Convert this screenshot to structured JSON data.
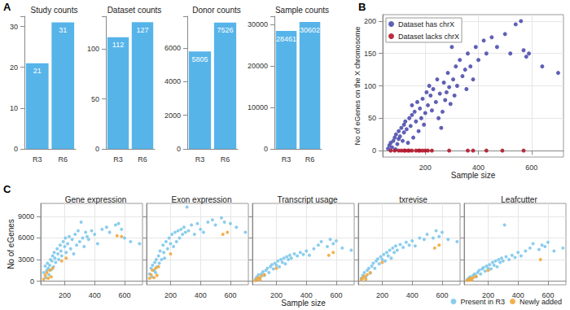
{
  "chart_data": [
    {
      "type": "bar",
      "annotation": "A",
      "title": "Study counts",
      "categories": [
        "R3",
        "R6"
      ],
      "values": [
        21,
        31
      ],
      "color": "#56B4E9",
      "ylim": [
        0,
        32.5
      ],
      "yticks": [
        0,
        10,
        20,
        30
      ],
      "grid": false,
      "data_labels": true
    },
    {
      "type": "bar",
      "title": "Dataset counts",
      "categories": [
        "R3",
        "R6"
      ],
      "values": [
        112,
        127
      ],
      "color": "#56B4E9",
      "ylim": [
        0,
        133
      ],
      "yticks": [
        0,
        50,
        100
      ],
      "grid": false,
      "data_labels": true
    },
    {
      "type": "bar",
      "title": "Donor counts",
      "categories": [
        "R3",
        "R6"
      ],
      "values": [
        5805,
        7526
      ],
      "color": "#56B4E9",
      "ylim": [
        0,
        7900
      ],
      "yticks": [
        0,
        2000,
        4000,
        6000
      ],
      "grid": false,
      "data_labels": true
    },
    {
      "type": "bar",
      "title": "Sample counts",
      "categories": [
        "R3",
        "R6"
      ],
      "values": [
        28461,
        30602
      ],
      "color": "#56B4E9",
      "ylim": [
        0,
        32000
      ],
      "yticks": [
        0,
        10000,
        20000,
        30000
      ],
      "grid": false,
      "data_labels": true
    },
    {
      "type": "scatter",
      "annotation": "B",
      "x_label": "Sample size",
      "y_label": "No of eGenes on the X chromosome",
      "xlim": [
        40,
        720
      ],
      "xticks": [
        200,
        400,
        600
      ],
      "ylim": [
        -10,
        210
      ],
      "yticks": [
        0,
        50,
        100,
        150,
        200
      ],
      "grid": true,
      "legend": "top-left",
      "series": [
        {
          "name": "Dataset has chrX",
          "color": "#4F4FAE",
          "x": [
            60,
            65,
            70,
            75,
            80,
            85,
            88,
            90,
            95,
            100,
            100,
            105,
            110,
            115,
            120,
            120,
            125,
            130,
            135,
            140,
            145,
            150,
            150,
            155,
            160,
            165,
            170,
            175,
            180,
            185,
            190,
            195,
            200,
            205,
            210,
            215,
            220,
            225,
            230,
            240,
            245,
            250,
            255,
            260,
            265,
            270,
            275,
            280,
            285,
            290,
            295,
            300,
            305,
            310,
            315,
            320,
            330,
            340,
            350,
            355,
            360,
            370,
            380,
            390,
            400,
            420,
            430,
            450,
            470,
            500,
            520,
            540,
            560,
            570,
            580,
            590,
            640,
            700
          ],
          "values": [
            3,
            8,
            12,
            5,
            15,
            20,
            2,
            25,
            10,
            30,
            18,
            22,
            35,
            15,
            40,
            28,
            45,
            33,
            12,
            50,
            38,
            55,
            70,
            20,
            60,
            45,
            75,
            30,
            65,
            50,
            80,
            40,
            58,
            90,
            70,
            100,
            85,
            62,
            95,
            75,
            110,
            50,
            88,
            35,
            60,
            105,
            78,
            90,
            120,
            98,
            72,
            160,
            110,
            85,
            130,
            100,
            140,
            115,
            125,
            95,
            150,
            130,
            110,
            160,
            140,
            170,
            150,
            175,
            160,
            180,
            150,
            195,
            200,
            155,
            145,
            150,
            130,
            120
          ]
        },
        {
          "name": "Dataset lacks chrX",
          "color": "#B2182B",
          "x": [
            70,
            85,
            100,
            110,
            120,
            125,
            135,
            140,
            150,
            165,
            175,
            180,
            190,
            200,
            210,
            225,
            290,
            360,
            380,
            430,
            490,
            570
          ],
          "values": [
            0,
            0,
            0,
            0,
            0,
            0,
            0,
            0,
            0,
            0,
            0,
            0,
            0,
            0,
            0,
            0,
            0,
            0,
            0,
            0,
            0,
            0
          ]
        }
      ]
    },
    {
      "type": "scatter",
      "annotation": "C",
      "title": "Gene expression",
      "y_label": "No of eGenes",
      "xlim": [
        40,
        720
      ],
      "xticks": [
        200,
        400,
        600
      ],
      "ylim": [
        -500,
        10800
      ],
      "yticks": [
        0,
        3000,
        6000,
        9000
      ],
      "grid": true,
      "series": [
        {
          "name": "Present in R3",
          "color": "#7EC8EC",
          "x": [
            60,
            70,
            75,
            80,
            85,
            90,
            95,
            100,
            105,
            110,
            115,
            120,
            125,
            130,
            135,
            140,
            150,
            155,
            160,
            170,
            175,
            180,
            190,
            200,
            205,
            210,
            220,
            230,
            240,
            250,
            260,
            270,
            280,
            290,
            300,
            310,
            320,
            330,
            340,
            350,
            360,
            380,
            400,
            420,
            450,
            480,
            500,
            540,
            560,
            580,
            600,
            640,
            700
          ],
          "values": [
            1200,
            2100,
            500,
            1500,
            2500,
            1800,
            900,
            2200,
            3000,
            1600,
            2800,
            3500,
            2000,
            4000,
            3200,
            2600,
            4500,
            3800,
            3000,
            5000,
            4200,
            3500,
            5500,
            4800,
            6000,
            4000,
            5200,
            6200,
            4500,
            5800,
            3800,
            6500,
            5000,
            7000,
            5500,
            8200,
            6000,
            4800,
            6800,
            6200,
            5800,
            7000,
            6500,
            5200,
            7200,
            7500,
            6800,
            7800,
            8000,
            7200,
            6000,
            5500,
            5200
          ]
        },
        {
          "name": "Newly added",
          "color": "#F2A93B",
          "x": [
            60,
            70,
            80,
            90,
            100,
            110,
            120,
            180,
            210,
            550,
            580
          ],
          "values": [
            300,
            800,
            1200,
            400,
            1500,
            600,
            1800,
            2800,
            3200,
            6300,
            6200
          ]
        }
      ]
    },
    {
      "type": "scatter",
      "title": "Exon expression",
      "tick_labels": "x",
      "xlim": [
        40,
        720
      ],
      "xticks": [
        200,
        400,
        600
      ],
      "ylim": [
        -500,
        10800
      ],
      "yticks": [
        0,
        3000,
        6000,
        9000
      ],
      "grid": true,
      "series": [
        {
          "name": "Present in R3",
          "color": "#7EC8EC",
          "x": [
            60,
            70,
            75,
            80,
            90,
            95,
            100,
            105,
            110,
            120,
            125,
            130,
            140,
            150,
            155,
            160,
            170,
            180,
            190,
            200,
            210,
            220,
            230,
            240,
            250,
            260,
            270,
            280,
            290,
            300,
            310,
            320,
            340,
            360,
            380,
            400,
            420,
            450,
            480,
            500,
            540,
            560,
            600,
            640,
            700
          ],
          "values": [
            1000,
            1800,
            600,
            2200,
            1500,
            2600,
            1200,
            3000,
            2000,
            3500,
            2500,
            4200,
            3000,
            5000,
            4000,
            3200,
            5500,
            4500,
            6000,
            5200,
            6500,
            4800,
            6800,
            5500,
            7000,
            6000,
            7200,
            6500,
            7500,
            6800,
            10300,
            7000,
            7800,
            6500,
            8000,
            7200,
            6800,
            8200,
            8500,
            7800,
            8800,
            8200,
            8000,
            7500,
            6800
          ]
        },
        {
          "name": "Newly added",
          "color": "#F2A93B",
          "x": [
            60,
            70,
            80,
            90,
            100,
            110,
            120,
            200,
            550,
            580
          ],
          "values": [
            400,
            900,
            1500,
            500,
            1800,
            800,
            2000,
            3800,
            6500,
            6800
          ]
        }
      ]
    },
    {
      "type": "scatter",
      "title": "Transcript usage",
      "x_label": "Sample size",
      "tick_labels": "x",
      "xlim": [
        40,
        720
      ],
      "xticks": [
        200,
        400,
        600
      ],
      "ylim": [
        -500,
        10800
      ],
      "yticks": [
        0,
        3000,
        6000,
        9000
      ],
      "grid": true,
      "series": [
        {
          "name": "Present in R3",
          "color": "#7EC8EC",
          "x": [
            60,
            70,
            80,
            90,
            100,
            110,
            120,
            130,
            140,
            150,
            160,
            170,
            180,
            190,
            200,
            210,
            220,
            230,
            240,
            250,
            260,
            270,
            280,
            290,
            300,
            320,
            340,
            360,
            380,
            400,
            420,
            450,
            480,
            500,
            540,
            560,
            580,
            600,
            640,
            700
          ],
          "values": [
            300,
            600,
            900,
            400,
            1000,
            1300,
            800,
            1500,
            1800,
            1200,
            2000,
            2300,
            1700,
            2500,
            2200,
            2800,
            2000,
            3000,
            2600,
            3200,
            2400,
            3400,
            3000,
            3600,
            3200,
            3800,
            3500,
            4000,
            3700,
            4200,
            3600,
            4500,
            5000,
            5500,
            4800,
            5800,
            5200,
            5600,
            4600,
            4300
          ]
        },
        {
          "name": "Newly added",
          "color": "#F2A93B",
          "x": [
            60,
            70,
            80,
            90,
            100,
            120,
            200,
            550,
            580
          ],
          "values": [
            100,
            300,
            500,
            200,
            700,
            900,
            1800,
            3600,
            4000
          ]
        }
      ]
    },
    {
      "type": "scatter",
      "title": "txrevise",
      "tick_labels": "x",
      "xlim": [
        40,
        720
      ],
      "xticks": [
        200,
        400,
        600
      ],
      "ylim": [
        -500,
        10800
      ],
      "yticks": [
        0,
        3000,
        6000,
        9000
      ],
      "grid": true,
      "series": [
        {
          "name": "Present in R3",
          "color": "#7EC8EC",
          "x": [
            60,
            70,
            80,
            90,
            100,
            110,
            120,
            130,
            140,
            150,
            160,
            170,
            180,
            190,
            200,
            210,
            220,
            230,
            240,
            250,
            260,
            270,
            280,
            290,
            300,
            320,
            340,
            360,
            380,
            400,
            420,
            450,
            480,
            500,
            540,
            560,
            580,
            600,
            640,
            700
          ],
          "values": [
            400,
            800,
            1200,
            600,
            1500,
            1800,
            1100,
            2100,
            2500,
            1800,
            2800,
            3100,
            2400,
            3400,
            3000,
            3700,
            2800,
            4000,
            3500,
            4300,
            3200,
            4600,
            4000,
            4900,
            4300,
            5100,
            4700,
            5400,
            5000,
            5600,
            4900,
            6000,
            5800,
            6500,
            6000,
            7000,
            6200,
            6800,
            5800,
            5500
          ]
        },
        {
          "name": "Newly added",
          "color": "#F2A93B",
          "x": [
            60,
            70,
            80,
            90,
            100,
            120,
            200,
            550,
            580
          ],
          "values": [
            200,
            400,
            700,
            300,
            900,
            1200,
            2600,
            4600,
            5000
          ]
        }
      ]
    },
    {
      "type": "scatter",
      "title": "Leafcutter",
      "tick_labels": "x",
      "legend": "bottom-right",
      "xlim": [
        40,
        720
      ],
      "xticks": [
        200,
        400,
        600
      ],
      "ylim": [
        -500,
        10800
      ],
      "yticks": [
        0,
        3000,
        6000,
        9000
      ],
      "grid": true,
      "series": [
        {
          "name": "Present in R3",
          "color": "#7EC8EC",
          "x": [
            60,
            70,
            80,
            90,
            100,
            110,
            120,
            130,
            140,
            150,
            160,
            170,
            180,
            190,
            200,
            210,
            220,
            230,
            240,
            250,
            260,
            270,
            280,
            290,
            300,
            310,
            320,
            340,
            360,
            380,
            400,
            420,
            450,
            480,
            500,
            540,
            560,
            580,
            600,
            640,
            700
          ],
          "values": [
            200,
            400,
            600,
            300,
            800,
            1000,
            600,
            1200,
            1500,
            1000,
            1700,
            1900,
            1400,
            2100,
            1800,
            2300,
            1700,
            2600,
            2200,
            2800,
            2000,
            3000,
            2600,
            3200,
            2800,
            7800,
            3400,
            3000,
            3600,
            3300,
            4000,
            3500,
            4200,
            4600,
            5200,
            4400,
            5000,
            4800,
            5400,
            4200,
            4600
          ]
        },
        {
          "name": "Newly added",
          "color": "#F2A93B",
          "x": [
            60,
            70,
            80,
            90,
            100,
            120,
            200,
            550
          ],
          "values": [
            100,
            200,
            400,
            150,
            500,
            700,
            1500,
            3000
          ]
        }
      ]
    }
  ]
}
